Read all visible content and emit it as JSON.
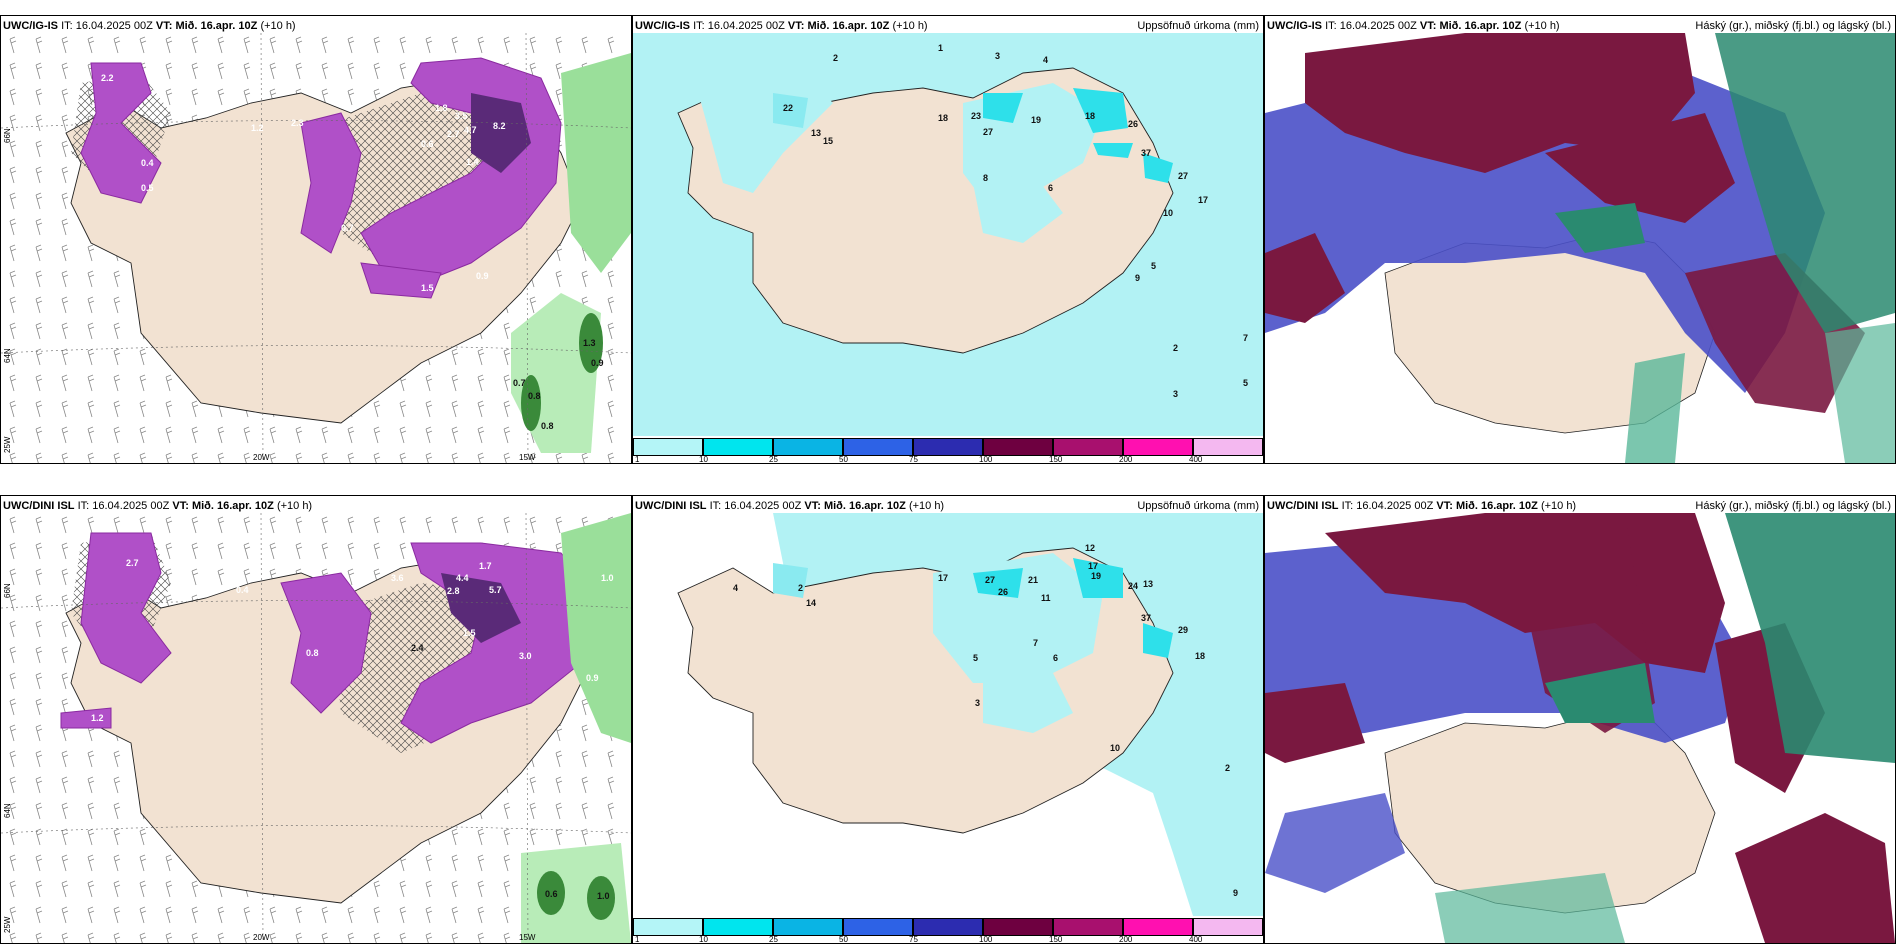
{
  "panels": [
    {
      "id": "ig-left",
      "model_label": "UWC/IG-IS",
      "init_label": "IT:",
      "init_value": "16.04.2025 00Z",
      "valid_label": "VT:",
      "valid_value": "Mið. 16.apr. 10Z",
      "lead": "(+10 h)",
      "right_title": "",
      "axis_labels": {
        "lat_top": "66N",
        "lat_mid": "64N",
        "lon_left": "25W",
        "lon_mid": "20W",
        "lon_right": "15W"
      },
      "values": [
        "2.2",
        "2.3",
        "8.2",
        "3.5",
        "4.7",
        "2.7",
        "1.8",
        "1.4",
        "0.6",
        "0.7",
        "1.5",
        "0.9",
        "1.3",
        "0.9",
        "0.7",
        "0.8",
        "0.8",
        "1.2",
        "0.5",
        "0.4"
      ]
    },
    {
      "id": "ig-mid",
      "model_label": "UWC/IG-IS",
      "init_label": "IT:",
      "init_value": "16.04.2025 00Z",
      "valid_label": "VT:",
      "valid_value": "Mið. 16.apr. 10Z",
      "lead": "(+10 h)",
      "right_title": "Uppsöfnuð úrkoma (mm)",
      "values": [
        "2",
        "1",
        "3",
        "4",
        "22",
        "13",
        "15",
        "18",
        "23",
        "27",
        "19",
        "18",
        "26",
        "37",
        "27",
        "17",
        "9",
        "10",
        "5",
        "6",
        "8",
        "7",
        "5",
        "2",
        "3"
      ]
    },
    {
      "id": "ig-right",
      "model_label": "UWC/IG-IS",
      "init_label": "IT:",
      "init_value": "16.04.2025 00Z",
      "valid_label": "VT:",
      "valid_value": "Mið. 16.apr. 10Z",
      "lead": "(+10 h)",
      "right_title": "Háský (gr.), miðský (fj.bl.) og lágský (bl.)"
    },
    {
      "id": "dini-left",
      "model_label": "UWC/DINI ISL",
      "init_label": "IT:",
      "init_value": "16.04.2025 00Z",
      "valid_label": "VT:",
      "valid_value": "Mið. 16.apr. 10Z",
      "lead": "(+10 h)",
      "right_title": "",
      "axis_labels": {
        "lat_top": "66N",
        "lat_mid": "64N",
        "lon_left": "25W",
        "lon_mid": "20W",
        "lon_right": "15W"
      },
      "values": [
        "2.7",
        "3.6",
        "4.4",
        "2.8",
        "5.7",
        "3.0",
        "1.7",
        "1.5",
        "0.9",
        "1.0",
        "0.6",
        "1.0",
        "2.4",
        "0.8",
        "0.4",
        "1.2"
      ]
    },
    {
      "id": "dini-mid",
      "model_label": "UWC/DINI ISL",
      "init_label": "IT:",
      "init_value": "16.04.2025 00Z",
      "valid_label": "VT:",
      "valid_value": "Mið. 16.apr. 10Z",
      "lead": "(+10 h)",
      "right_title": "Uppsöfnuð úrkoma (mm)",
      "values": [
        "2",
        "4",
        "14",
        "17",
        "27",
        "26",
        "21",
        "11",
        "12",
        "17",
        "19",
        "24",
        "13",
        "37",
        "29",
        "18",
        "10",
        "7",
        "5",
        "6",
        "3",
        "2",
        "9"
      ]
    },
    {
      "id": "dini-right",
      "model_label": "UWC/DINI ISL",
      "init_label": "IT:",
      "init_value": "16.04.2025 00Z",
      "valid_label": "VT:",
      "valid_value": "Mið. 16.apr. 10Z",
      "lead": "(+10 h)",
      "right_title": "Háský (gr.), miðský (fj.bl.) og lágský (bl.)"
    }
  ],
  "legend": {
    "ticks": [
      "1",
      "10",
      "25",
      "50",
      "75",
      "100",
      "150",
      "200",
      "400"
    ],
    "colors": [
      "#b4f5f7",
      "#00e5ee",
      "#0ab4e4",
      "#2d62e6",
      "#2c2cb0",
      "#6e0040",
      "#a8106e",
      "#ff10b0",
      "#f4b8f0"
    ]
  },
  "colors": {
    "land": "#f2e2d2",
    "precip_light": "#b2f2f4",
    "precip_cyan": "#2ee0ea",
    "snow_purple": "#b050c8",
    "snow_dark": "#5a2a78",
    "rain_green": "#9adf9a",
    "high_cloud": "#7a1840",
    "mid_cloud": "#4a50c8",
    "low_cloud": "#2a8a70"
  }
}
